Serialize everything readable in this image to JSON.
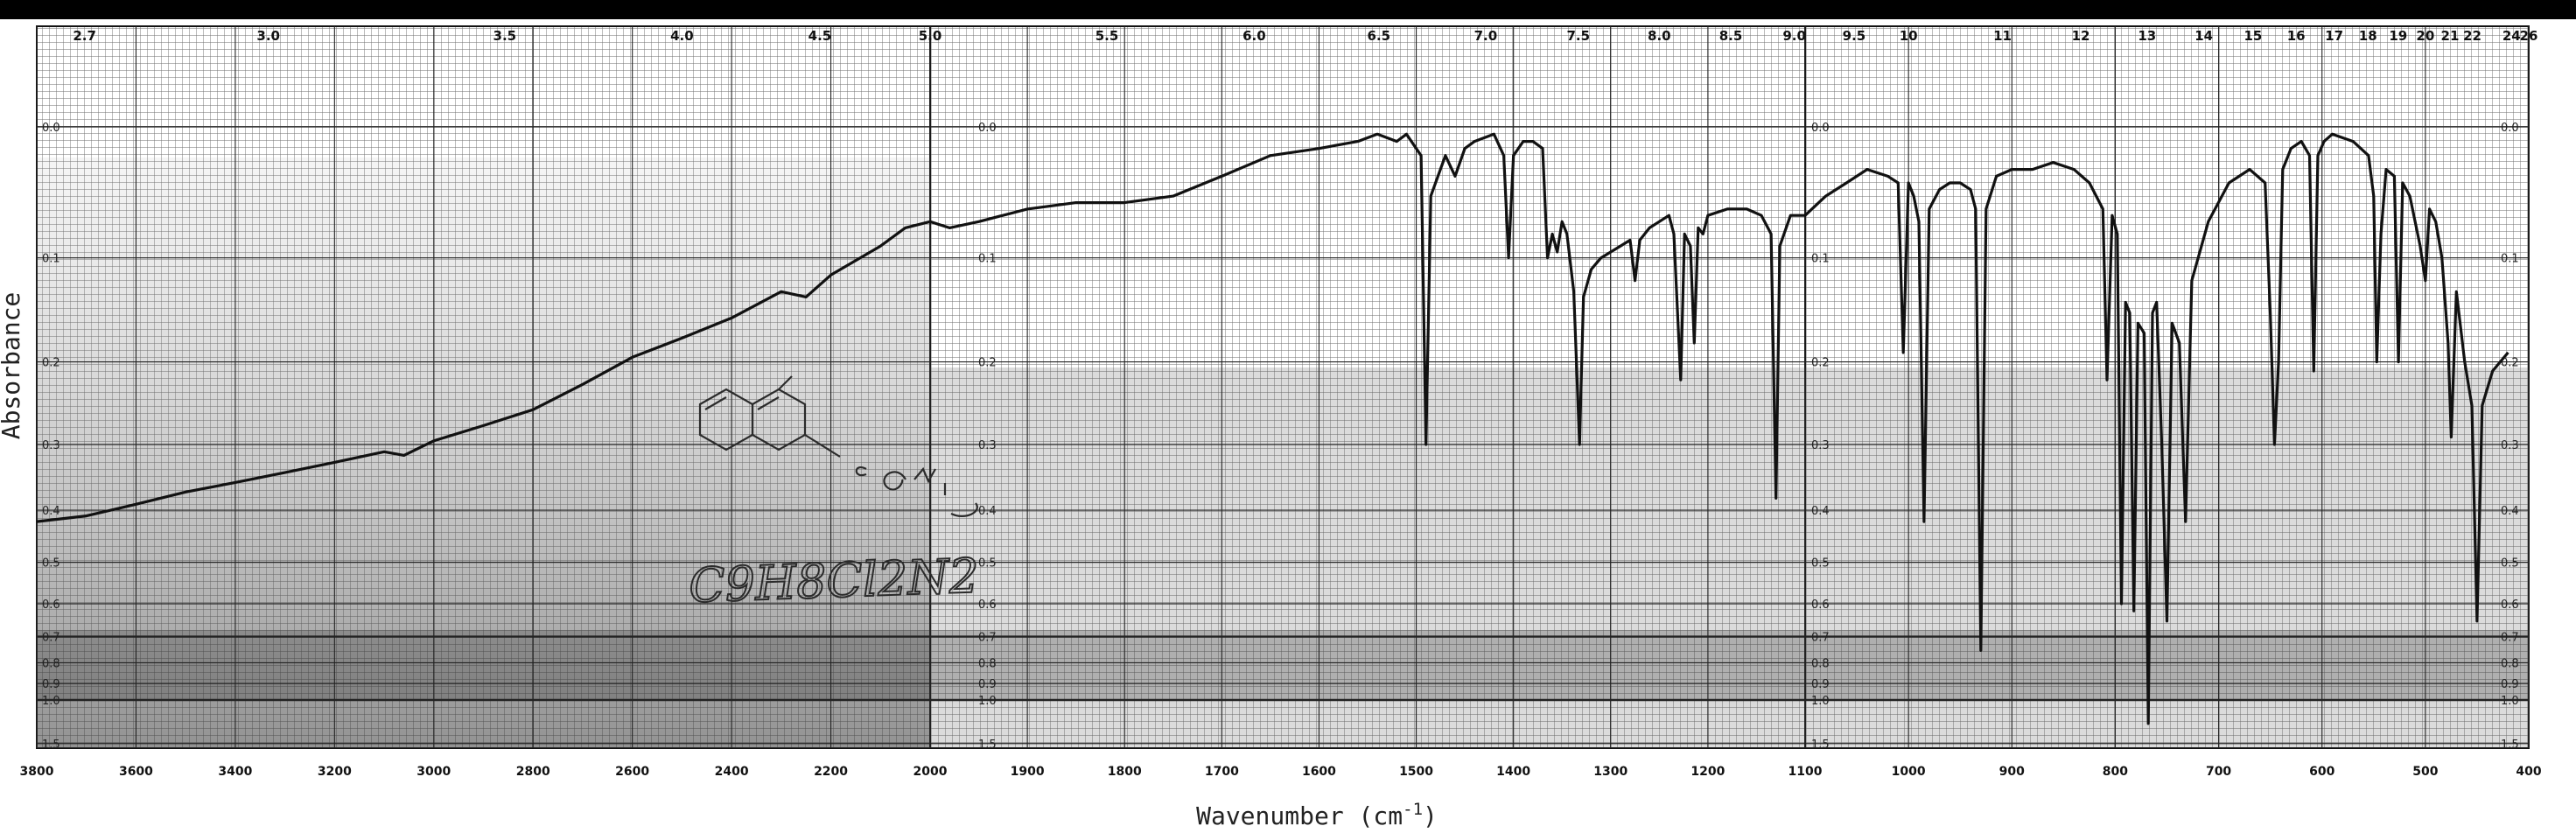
{
  "chart_data": {
    "type": "line",
    "xlabel": "Wavenumber (cm-1)",
    "xlabel_main": "Wavenumber (cm",
    "xlabel_sup": "-1",
    "xlabel_tail": ")",
    "ylabel": "Absorbance",
    "x_axis_reversed": true,
    "x_panels": [
      {
        "from": 3800,
        "to": 2000
      },
      {
        "from": 2000,
        "to": 1100
      },
      {
        "from": 1100,
        "to": 400
      }
    ],
    "x_ticks_bottom": [
      "3800",
      "3600",
      "3400",
      "3200",
      "3000",
      "2800",
      "2600",
      "2400",
      "2200",
      "2000",
      "1900",
      "1800",
      "1700",
      "1600",
      "1500",
      "1400",
      "1300",
      "1200",
      "1100",
      "1000",
      "900",
      "800",
      "700",
      "600",
      "500",
      "400"
    ],
    "x_ticks_top_microns": [
      "2.7",
      "3.0",
      "3.5",
      "4.0",
      "4.5",
      "5.0",
      "5.5",
      "6.0",
      "6.5",
      "7.0",
      "7.5",
      "8.0",
      "8.5",
      "9.0",
      "9.5",
      "10",
      "11",
      "12",
      "13",
      "14",
      "15",
      "16",
      "17",
      "18",
      "19",
      "20",
      "21",
      "22",
      "24",
      "26"
    ],
    "y_ticks": [
      "0.0",
      "0.1",
      "0.2",
      "0.3",
      "0.4",
      "0.5",
      "0.6",
      "0.7",
      "0.8",
      "0.9",
      "1.0",
      "1.5"
    ],
    "y_scale": "log-transmittance (absorbance)",
    "grid": true,
    "annotation_handwritten": "C9H8Cl2N2",
    "series": [
      {
        "points": [
          [
            3800,
            0.42
          ],
          [
            3700,
            0.41
          ],
          [
            3600,
            0.39
          ],
          [
            3500,
            0.37
          ],
          [
            3400,
            0.355
          ],
          [
            3300,
            0.34
          ],
          [
            3200,
            0.325
          ],
          [
            3100,
            0.31
          ],
          [
            3060,
            0.315
          ],
          [
            3000,
            0.295
          ],
          [
            2900,
            0.275
          ],
          [
            2800,
            0.255
          ],
          [
            2700,
            0.225
          ],
          [
            2600,
            0.195
          ],
          [
            2500,
            0.175
          ],
          [
            2400,
            0.155
          ],
          [
            2300,
            0.13
          ],
          [
            2250,
            0.135
          ],
          [
            2200,
            0.115
          ],
          [
            2100,
            0.09
          ],
          [
            2050,
            0.075
          ],
          [
            2000,
            0.07
          ],
          [
            1980,
            0.075
          ],
          [
            1950,
            0.07
          ],
          [
            1900,
            0.06
          ],
          [
            1850,
            0.055
          ],
          [
            1800,
            0.055
          ],
          [
            1750,
            0.05
          ],
          [
            1700,
            0.035
          ],
          [
            1650,
            0.02
          ],
          [
            1600,
            0.015
          ],
          [
            1560,
            0.01
          ],
          [
            1540,
            0.005
          ],
          [
            1520,
            0.01
          ],
          [
            1510,
            0.005
          ],
          [
            1495,
            0.02
          ],
          [
            1490,
            0.3
          ],
          [
            1485,
            0.05
          ],
          [
            1470,
            0.02
          ],
          [
            1460,
            0.035
          ],
          [
            1450,
            0.015
          ],
          [
            1440,
            0.01
          ],
          [
            1420,
            0.005
          ],
          [
            1410,
            0.02
          ],
          [
            1405,
            0.1
          ],
          [
            1400,
            0.02
          ],
          [
            1390,
            0.01
          ],
          [
            1380,
            0.01
          ],
          [
            1370,
            0.015
          ],
          [
            1365,
            0.1
          ],
          [
            1360,
            0.08
          ],
          [
            1355,
            0.095
          ],
          [
            1350,
            0.07
          ],
          [
            1345,
            0.08
          ],
          [
            1338,
            0.13
          ],
          [
            1332,
            0.3
          ],
          [
            1328,
            0.135
          ],
          [
            1320,
            0.11
          ],
          [
            1310,
            0.1
          ],
          [
            1300,
            0.095
          ],
          [
            1290,
            0.09
          ],
          [
            1280,
            0.085
          ],
          [
            1275,
            0.12
          ],
          [
            1270,
            0.085
          ],
          [
            1260,
            0.075
          ],
          [
            1250,
            0.07
          ],
          [
            1240,
            0.065
          ],
          [
            1235,
            0.08
          ],
          [
            1228,
            0.22
          ],
          [
            1224,
            0.08
          ],
          [
            1218,
            0.09
          ],
          [
            1214,
            0.18
          ],
          [
            1210,
            0.075
          ],
          [
            1205,
            0.08
          ],
          [
            1200,
            0.065
          ],
          [
            1180,
            0.06
          ],
          [
            1160,
            0.06
          ],
          [
            1145,
            0.065
          ],
          [
            1135,
            0.08
          ],
          [
            1130,
            0.38
          ],
          [
            1126,
            0.09
          ],
          [
            1115,
            0.065
          ],
          [
            1100,
            0.065
          ],
          [
            1080,
            0.05
          ],
          [
            1060,
            0.04
          ],
          [
            1040,
            0.03
          ],
          [
            1020,
            0.035
          ],
          [
            1010,
            0.04
          ],
          [
            1005,
            0.19
          ],
          [
            1000,
            0.04
          ],
          [
            995,
            0.05
          ],
          [
            990,
            0.07
          ],
          [
            985,
            0.42
          ],
          [
            980,
            0.06
          ],
          [
            970,
            0.045
          ],
          [
            960,
            0.04
          ],
          [
            950,
            0.04
          ],
          [
            940,
            0.045
          ],
          [
            935,
            0.06
          ],
          [
            930,
            0.75
          ],
          [
            925,
            0.06
          ],
          [
            915,
            0.035
          ],
          [
            900,
            0.03
          ],
          [
            880,
            0.03
          ],
          [
            860,
            0.025
          ],
          [
            840,
            0.03
          ],
          [
            825,
            0.04
          ],
          [
            812,
            0.06
          ],
          [
            808,
            0.22
          ],
          [
            803,
            0.065
          ],
          [
            798,
            0.08
          ],
          [
            794,
            0.6
          ],
          [
            790,
            0.14
          ],
          [
            786,
            0.15
          ],
          [
            782,
            0.62
          ],
          [
            778,
            0.16
          ],
          [
            772,
            0.17
          ],
          [
            768,
            1.2
          ],
          [
            764,
            0.15
          ],
          [
            760,
            0.14
          ],
          [
            755,
            0.3
          ],
          [
            750,
            0.65
          ],
          [
            745,
            0.16
          ],
          [
            738,
            0.18
          ],
          [
            732,
            0.42
          ],
          [
            726,
            0.12
          ],
          [
            710,
            0.07
          ],
          [
            690,
            0.04
          ],
          [
            670,
            0.03
          ],
          [
            655,
            0.04
          ],
          [
            650,
            0.15
          ],
          [
            646,
            0.3
          ],
          [
            642,
            0.2
          ],
          [
            638,
            0.03
          ],
          [
            630,
            0.015
          ],
          [
            620,
            0.01
          ],
          [
            612,
            0.02
          ],
          [
            608,
            0.21
          ],
          [
            604,
            0.02
          ],
          [
            598,
            0.01
          ],
          [
            590,
            0.005
          ],
          [
            570,
            0.01
          ],
          [
            555,
            0.02
          ],
          [
            550,
            0.05
          ],
          [
            547,
            0.2
          ],
          [
            543,
            0.08
          ],
          [
            538,
            0.03
          ],
          [
            530,
            0.035
          ],
          [
            526,
            0.2
          ],
          [
            522,
            0.04
          ],
          [
            515,
            0.05
          ],
          [
            505,
            0.09
          ],
          [
            500,
            0.12
          ],
          [
            496,
            0.06
          ],
          [
            490,
            0.07
          ],
          [
            484,
            0.1
          ],
          [
            478,
            0.18
          ],
          [
            475,
            0.29
          ],
          [
            470,
            0.13
          ],
          [
            462,
            0.2
          ],
          [
            455,
            0.25
          ],
          [
            450,
            0.65
          ],
          [
            445,
            0.25
          ],
          [
            435,
            0.21
          ],
          [
            420,
            0.19
          ]
        ]
      }
    ]
  }
}
